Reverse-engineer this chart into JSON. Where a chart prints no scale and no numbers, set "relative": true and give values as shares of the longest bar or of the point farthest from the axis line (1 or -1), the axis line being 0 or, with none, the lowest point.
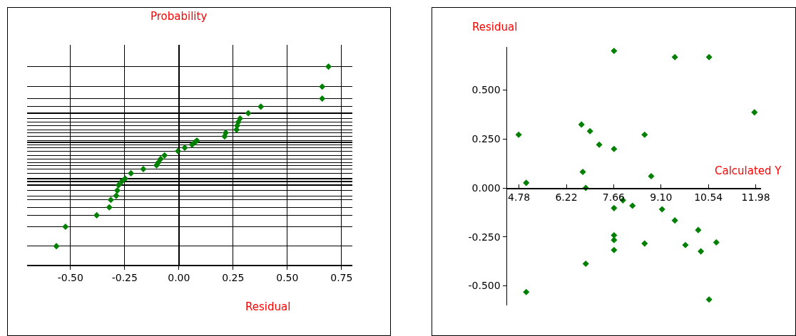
{
  "chart_data": [
    {
      "type": "scatter",
      "xlabel": "Residual",
      "ylabel": "Probability",
      "relative": true,
      "grid": true,
      "marker": "diamond",
      "tick_labels": "x",
      "xlim": [
        -0.7,
        0.8
      ],
      "xticks": [
        {
          "value": -0.5,
          "label": "-0.50"
        },
        {
          "value": -0.25,
          "label": "-0.25"
        },
        {
          "value": 0,
          "label": "0.00"
        },
        {
          "value": 0.25,
          "label": "0.25"
        },
        {
          "value": 0.5,
          "label": "0.50"
        },
        {
          "value": 0.75,
          "label": "0.75"
        }
      ],
      "x": [
        -0.565,
        -0.523,
        -0.379,
        -0.321,
        -0.314,
        -0.289,
        -0.284,
        -0.278,
        -0.264,
        -0.248,
        -0.221,
        -0.164,
        -0.103,
        -0.095,
        -0.084,
        -0.066,
        -0.004,
        0.027,
        0.061,
        0.074,
        0.083,
        0.211,
        0.216,
        0.266,
        0.269,
        0.274,
        0.282,
        0.32,
        0.378,
        0.661,
        0.661,
        0.69
      ],
      "series": [
        {
          "color": "#008000",
          "values": [
            0.094,
            0.192,
            0.25,
            0.29,
            0.328,
            0.348,
            0.375,
            0.402,
            0.42,
            0.435,
            0.462,
            0.483,
            0.502,
            0.516,
            0.534,
            0.552,
            0.574,
            0.591,
            0.606,
            0.618,
            0.627,
            0.648,
            0.666,
            0.682,
            0.702,
            0.72,
            0.738,
            0.765,
            0.798,
            0.839,
            0.899,
            1
          ]
        }
      ]
    },
    {
      "type": "scatter",
      "xlabel": "Calculated Y",
      "ylabel": "Residual",
      "grid": false,
      "marker": "diamond",
      "xlim": [
        4.42,
        12.14
      ],
      "ylim": [
        -0.6,
        0.72
      ],
      "xticks": [
        {
          "value": 4.78,
          "label": "4.78"
        },
        {
          "value": 6.22,
          "label": "6.22"
        },
        {
          "value": 7.66,
          "label": "7.66"
        },
        {
          "value": 9.1,
          "label": "9.10"
        },
        {
          "value": 10.54,
          "label": "10.54"
        },
        {
          "value": 11.98,
          "label": "11.98"
        }
      ],
      "yticks": [
        {
          "value": -0.5,
          "label": "-0.500"
        },
        {
          "value": -0.25,
          "label": "-0.250"
        },
        {
          "value": 0,
          "label": "0.000"
        },
        {
          "value": 0.25,
          "label": "0.250"
        },
        {
          "value": 0.5,
          "label": "0.500"
        }
      ],
      "x": [
        7.67,
        9.52,
        10.56,
        11.94,
        4.77,
        6.68,
        6.94,
        7.22,
        7.67,
        8.6,
        6.72,
        8.8,
        5.0,
        6.81,
        7.94,
        8.23,
        7.67,
        9.13,
        9.52,
        10.23,
        7.67,
        7.67,
        8.6,
        9.84,
        10.78,
        10.31,
        7.67,
        6.81,
        5.0,
        10.56
      ],
      "series": [
        {
          "color": "#008000",
          "values": [
            0.7,
            0.668,
            0.668,
            0.386,
            0.272,
            0.324,
            0.29,
            0.221,
            0.199,
            0.272,
            0.082,
            0.06,
            0.026,
            0.0,
            -0.063,
            -0.091,
            -0.103,
            -0.109,
            -0.166,
            -0.215,
            -0.242,
            -0.266,
            -0.284,
            -0.292,
            -0.278,
            -0.324,
            -0.317,
            -0.387,
            -0.532,
            -0.57
          ]
        }
      ]
    }
  ]
}
